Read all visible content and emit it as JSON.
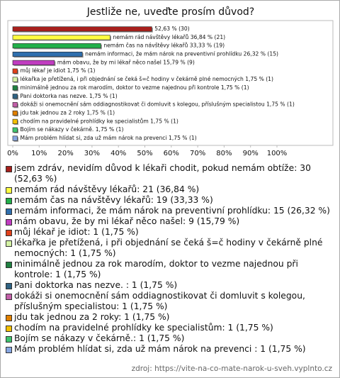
{
  "chart_data": {
    "type": "bar",
    "orientation": "horizontal",
    "title": "Jestliže ne, uveďte prosím důvod?",
    "values": [
      52.63,
      36.84,
      33.33,
      26.32,
      15.79,
      1.75,
      1.75,
      1.75,
      1.75,
      1.75,
      1.75,
      1.75,
      1.75,
      1.75
    ],
    "value_labels": [
      "52,63 % (30)",
      "nemám rád návštěvy lékařů 36,84 % (21)",
      "nemám čas na návštěvy lékařů 33,33 % (19)",
      "nemám informaci, že mám nárok na preventivní prohlídku 26,32 % (15)",
      "mám obavu, že by mi lékař něco našel 15,79 % (9)",
      "můj lékař je idiot 1,75 % (1)",
      "lékařka je přetížená, i při objednání se čeká š=č hodiny v čekárně plné nemocných 1,75 % (1)",
      "minimálně jednou za rok marodím, doktor to vezme najednou při kontrole 1,75 % (1)",
      "Pani doktorka nas nezve. 1,75 % (1)",
      "dokáži si onemocnění sám oddiagnostikovat či domluvit s kolegou, příslušným specialistou 1,75 % (1)",
      "jdu tak jednou za 2 roky 1,75 % (1)",
      "chodím na pravidelné prohlídky ke specialistům 1,75 % (1)",
      "Bojím se nákazy v čekárně. 1,75 % (1)",
      "Mám problém hlídat si, zda už mám nárok na prevenci 1,75 % (1)"
    ],
    "colors": [
      "#a8201c",
      "#ffff40",
      "#22b04a",
      "#2f6fae",
      "#c03cc0",
      "#e0401a",
      "#d4f2a4",
      "#1f8040",
      "#2f6282",
      "#c25fa8",
      "#e08000",
      "#f4c000",
      "#3ec46e",
      "#86a6e2"
    ],
    "legend_labels": [
      "jsem zdráv, nevidím důvod k lékaři chodit, pokud nemám obtíže: 30 (52,63 %)",
      "nemám rád návštěvy lékařů: 21 (36,84 %)",
      "nemám čas na návštěvy lékařů: 19 (33,33 %)",
      "nemám informaci, že mám nárok na preventivní prohlídku: 15 (26,32 %)",
      "mám obavu, že by mi lékař něco našel: 9 (15,79 %)",
      "můj lékař je idiot: 1 (1,75 %)",
      "lékařka je přetížená, i při objednání se čeká š=č hodiny v čekárně plné nemocných: 1 (1,75 %)",
      "minimálně jednou za rok marodím, doktor to vezme najednou při kontrole: 1 (1,75 %)",
      "Pani doktorka nas nezve. : 1 (1,75 %)",
      "dokáži si onemocnění sám oddiagnostikovat či domluvit s kolegou, příslušným specialistou: 1 (1,75 %)",
      "jdu tak jednou za 2 roky: 1 (1,75 %)",
      "chodím na pravidelné prohlídky ke specialistům: 1 (1,75 %)",
      "Bojím se nákazy v čekárně.: 1 (1,75 %)",
      "Mám problém hlídat si, zda už mám nárok na prevenci : 1 (1,75 %)"
    ],
    "xlim": [
      0,
      100
    ],
    "xticks": [
      {
        "value": 0,
        "label": "0%"
      },
      {
        "value": 10,
        "label": "10%"
      },
      {
        "value": 20,
        "label": "20%"
      },
      {
        "value": 30,
        "label": "30%"
      },
      {
        "value": 40,
        "label": "40%"
      },
      {
        "value": 50,
        "label": "50%"
      },
      {
        "value": 60,
        "label": "60%"
      },
      {
        "value": 70,
        "label": "70%"
      },
      {
        "value": 80,
        "label": "80%"
      },
      {
        "value": 90,
        "label": "90%"
      },
      {
        "value": 100,
        "label": "100%"
      }
    ],
    "source": "zdroj: https://vite-na-co-mate-narok-u-sveh.vyplnto.cz"
  }
}
